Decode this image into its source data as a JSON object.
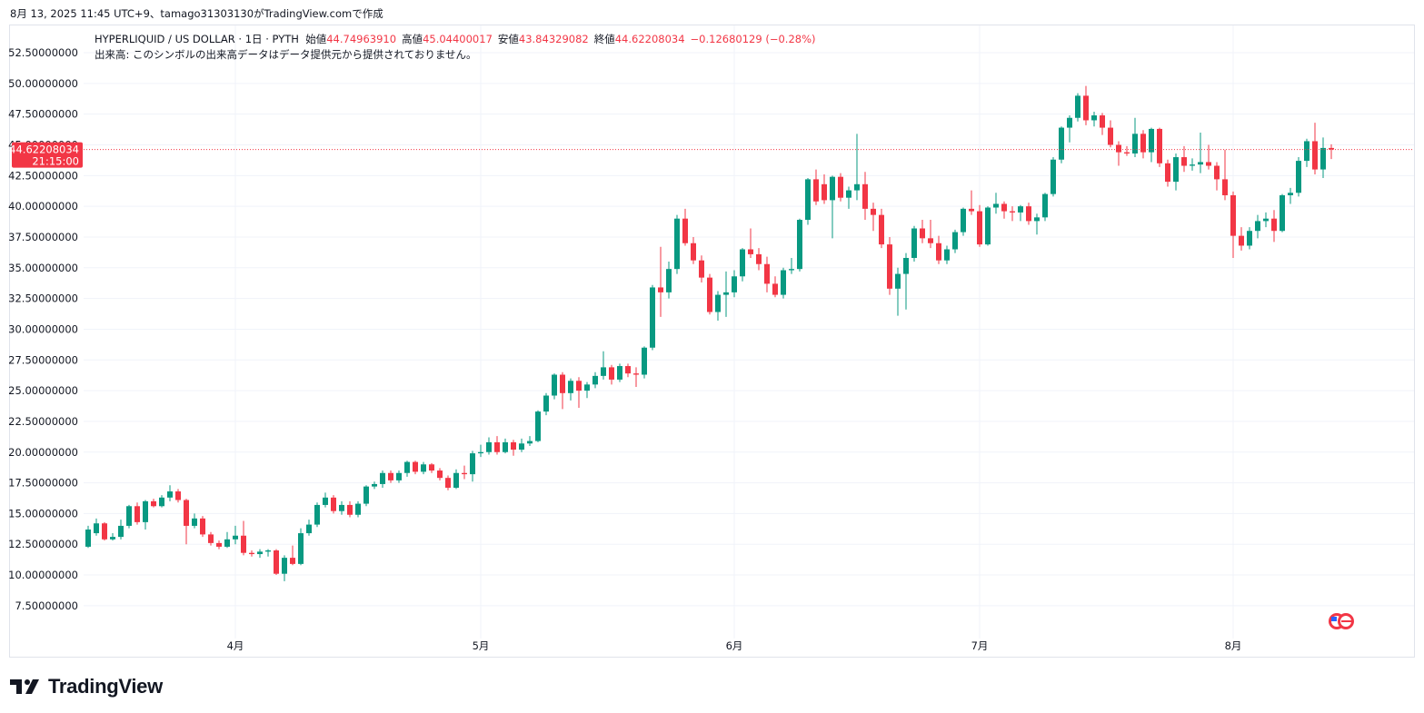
{
  "created_note": "8月 13, 2025 11:45 UTC+9、tamago31303130がTradingView.comで作成",
  "logo": "TradingView",
  "chart_data": {
    "type": "candlestick",
    "symbol": "HYPERLIQUID / US DOLLAR · 1日 · PYTH",
    "legend_items": [
      {
        "label": "始値",
        "value": "44.74963910"
      },
      {
        "label": "高値",
        "value": "45.04400017"
      },
      {
        "label": "安値",
        "value": "43.84329082"
      },
      {
        "label": "終値",
        "value": "44.62208034"
      }
    ],
    "change": "−0.12680129 (−0.28%)",
    "volume_note": "出来高: このシンボルの出来高データはデータ提供元から提供されておりません。",
    "last_price": {
      "value": 44.62208034,
      "label": "44.62208034"
    },
    "countdown": "21:15:00",
    "up_color": "#089981",
    "down_color": "#f23645",
    "grid": true,
    "ylim": [
      4.83,
      54.72
    ],
    "yticks": [
      {
        "value": 7.5,
        "label": "7.50000000"
      },
      {
        "value": 10,
        "label": "10.00000000"
      },
      {
        "value": 12.5,
        "label": "12.50000000"
      },
      {
        "value": 15,
        "label": "15.00000000"
      },
      {
        "value": 17.5,
        "label": "17.50000000"
      },
      {
        "value": 20,
        "label": "20.00000000"
      },
      {
        "value": 22.5,
        "label": "22.50000000"
      },
      {
        "value": 25,
        "label": "25.00000000"
      },
      {
        "value": 27.5,
        "label": "27.50000000"
      },
      {
        "value": 30,
        "label": "30.00000000"
      },
      {
        "value": 32.5,
        "label": "32.50000000"
      },
      {
        "value": 35,
        "label": "35.00000000"
      },
      {
        "value": 37.5,
        "label": "37.50000000"
      },
      {
        "value": 40,
        "label": "40.00000000"
      },
      {
        "value": 42.5,
        "label": "42.50000000"
      },
      {
        "value": 45,
        "label": "45.00000000"
      },
      {
        "value": 47.5,
        "label": "47.50000000"
      },
      {
        "value": 50,
        "label": "50.00000000"
      },
      {
        "value": 52.5,
        "label": "52.50000000"
      }
    ],
    "categories": [
      null,
      null,
      null,
      null,
      null,
      null,
      null,
      null,
      null,
      null,
      null,
      null,
      null,
      null,
      null,
      null,
      null,
      null,
      "4月",
      null,
      null,
      null,
      null,
      null,
      null,
      null,
      null,
      null,
      null,
      null,
      null,
      null,
      null,
      null,
      null,
      null,
      null,
      null,
      null,
      null,
      null,
      null,
      null,
      null,
      null,
      null,
      null,
      null,
      "5月",
      null,
      null,
      null,
      null,
      null,
      null,
      null,
      null,
      null,
      null,
      null,
      null,
      null,
      null,
      null,
      null,
      null,
      null,
      null,
      null,
      null,
      null,
      null,
      null,
      null,
      null,
      null,
      null,
      null,
      null,
      "6月",
      null,
      null,
      null,
      null,
      null,
      null,
      null,
      null,
      null,
      null,
      null,
      null,
      null,
      null,
      null,
      null,
      null,
      null,
      null,
      null,
      null,
      null,
      null,
      null,
      null,
      null,
      null,
      null,
      null,
      "7月",
      null,
      null,
      null,
      null,
      null,
      null,
      null,
      null,
      null,
      null,
      null,
      null,
      null,
      null,
      null,
      null,
      null,
      null,
      null,
      null,
      null,
      null,
      null,
      null,
      null,
      null,
      null,
      null,
      null,
      null,
      "8月",
      null,
      null,
      null,
      null,
      null,
      null,
      null,
      null,
      null,
      null,
      null,
      null
    ],
    "ohlc": [
      [
        12.3,
        14.0,
        12.2,
        13.7
      ],
      [
        13.4,
        14.6,
        13.2,
        14.2
      ],
      [
        14.2,
        14.3,
        12.8,
        12.9
      ],
      [
        12.9,
        13.4,
        12.8,
        13.1
      ],
      [
        13.1,
        14.5,
        12.9,
        14.0
      ],
      [
        14.0,
        15.7,
        13.8,
        15.6
      ],
      [
        15.6,
        15.9,
        14.1,
        14.3
      ],
      [
        14.3,
        16.1,
        13.7,
        16.0
      ],
      [
        16.0,
        16.2,
        15.5,
        15.6
      ],
      [
        15.6,
        16.5,
        15.5,
        16.3
      ],
      [
        16.3,
        17.3,
        16.0,
        16.8
      ],
      [
        16.8,
        17.0,
        15.9,
        16.1
      ],
      [
        16.1,
        16.2,
        12.5,
        14.0
      ],
      [
        14.0,
        15.0,
        13.8,
        14.6
      ],
      [
        14.6,
        14.8,
        13.1,
        13.3
      ],
      [
        13.3,
        13.5,
        12.4,
        12.6
      ],
      [
        12.6,
        12.8,
        12.1,
        12.3
      ],
      [
        12.3,
        13.5,
        12.2,
        12.9
      ],
      [
        12.9,
        14.0,
        12.5,
        13.2
      ],
      [
        13.2,
        14.4,
        11.6,
        11.8
      ],
      [
        11.8,
        12.0,
        11.5,
        11.7
      ],
      [
        11.7,
        12.1,
        11.4,
        11.9
      ],
      [
        11.9,
        12.1,
        11.5,
        12.0
      ],
      [
        12.0,
        12.1,
        10.0,
        10.1
      ],
      [
        10.1,
        11.6,
        9.5,
        11.4
      ],
      [
        11.4,
        12.4,
        10.8,
        10.9
      ],
      [
        10.9,
        13.8,
        10.8,
        13.4
      ],
      [
        13.4,
        14.5,
        13.2,
        14.1
      ],
      [
        14.1,
        15.9,
        13.9,
        15.7
      ],
      [
        15.7,
        16.7,
        15.5,
        16.3
      ],
      [
        16.3,
        16.5,
        15.0,
        15.2
      ],
      [
        15.2,
        16.0,
        14.9,
        15.7
      ],
      [
        15.7,
        16.0,
        14.7,
        14.9
      ],
      [
        14.9,
        16.0,
        14.7,
        15.8
      ],
      [
        15.8,
        17.3,
        15.6,
        17.2
      ],
      [
        17.2,
        17.6,
        17.0,
        17.4
      ],
      [
        17.4,
        18.5,
        17.1,
        18.3
      ],
      [
        18.3,
        18.5,
        17.5,
        17.7
      ],
      [
        17.7,
        18.5,
        17.5,
        18.3
      ],
      [
        18.3,
        19.3,
        18.0,
        19.2
      ],
      [
        19.2,
        19.3,
        18.2,
        18.4
      ],
      [
        18.4,
        19.2,
        18.2,
        19.0
      ],
      [
        19.0,
        19.1,
        18.3,
        18.5
      ],
      [
        18.5,
        18.7,
        17.7,
        17.9
      ],
      [
        17.9,
        18.1,
        16.9,
        17.1
      ],
      [
        17.1,
        18.6,
        17.0,
        18.3
      ],
      [
        18.3,
        18.9,
        17.8,
        18.2
      ],
      [
        18.2,
        20.1,
        17.6,
        19.9
      ],
      [
        19.9,
        20.6,
        19.6,
        20.0
      ],
      [
        20.0,
        21.2,
        19.8,
        20.8
      ],
      [
        20.8,
        21.3,
        19.8,
        20.0
      ],
      [
        20.0,
        21.1,
        19.9,
        20.8
      ],
      [
        20.8,
        21.0,
        19.7,
        20.2
      ],
      [
        20.2,
        21.1,
        20.0,
        20.7
      ],
      [
        20.7,
        21.3,
        20.5,
        20.9
      ],
      [
        20.9,
        23.4,
        20.8,
        23.3
      ],
      [
        23.3,
        24.8,
        23.0,
        24.6
      ],
      [
        24.6,
        26.4,
        24.3,
        26.3
      ],
      [
        26.3,
        26.5,
        23.5,
        24.8
      ],
      [
        24.8,
        26.0,
        24.2,
        25.8
      ],
      [
        25.8,
        26.1,
        23.6,
        25.0
      ],
      [
        25.0,
        25.7,
        24.4,
        25.5
      ],
      [
        25.5,
        26.5,
        25.2,
        26.2
      ],
      [
        26.2,
        28.2,
        25.9,
        26.9
      ],
      [
        26.9,
        27.1,
        25.5,
        25.9
      ],
      [
        25.9,
        27.2,
        25.7,
        27.0
      ],
      [
        27.0,
        27.2,
        26.1,
        26.4
      ],
      [
        26.4,
        26.9,
        25.3,
        26.3
      ],
      [
        26.3,
        28.6,
        26.0,
        28.5
      ],
      [
        28.5,
        33.6,
        28.3,
        33.4
      ],
      [
        33.4,
        36.7,
        31.0,
        33.0
      ],
      [
        33.0,
        35.5,
        32.5,
        34.9
      ],
      [
        34.9,
        39.3,
        34.5,
        39.0
      ],
      [
        39.0,
        39.8,
        36.8,
        37.0
      ],
      [
        37.0,
        37.5,
        35.3,
        35.6
      ],
      [
        35.6,
        36.0,
        33.8,
        34.2
      ],
      [
        34.2,
        34.5,
        31.2,
        31.4
      ],
      [
        31.4,
        33.1,
        30.7,
        32.8
      ],
      [
        32.8,
        34.7,
        31.0,
        33.0
      ],
      [
        33.0,
        34.8,
        32.6,
        34.3
      ],
      [
        34.3,
        36.6,
        33.9,
        36.5
      ],
      [
        36.5,
        38.2,
        35.8,
        36.1
      ],
      [
        36.1,
        36.6,
        34.8,
        35.3
      ],
      [
        35.3,
        35.9,
        33.0,
        33.7
      ],
      [
        33.7,
        34.3,
        32.6,
        32.8
      ],
      [
        32.8,
        35.0,
        32.5,
        34.8
      ],
      [
        34.8,
        35.8,
        34.5,
        34.9
      ],
      [
        34.9,
        39.0,
        34.7,
        38.9
      ],
      [
        38.9,
        42.3,
        38.5,
        42.2
      ],
      [
        42.2,
        43.0,
        40.1,
        40.4
      ],
      [
        41.8,
        42.6,
        40.2,
        40.5
      ],
      [
        40.5,
        42.5,
        37.4,
        42.4
      ],
      [
        42.4,
        42.7,
        40.4,
        40.7
      ],
      [
        40.7,
        41.6,
        39.8,
        41.3
      ],
      [
        41.3,
        45.9,
        40.5,
        41.8
      ],
      [
        41.8,
        42.8,
        38.9,
        39.8
      ],
      [
        39.8,
        40.3,
        38.0,
        39.3
      ],
      [
        39.3,
        39.8,
        36.6,
        36.9
      ],
      [
        36.9,
        37.5,
        32.8,
        33.3
      ],
      [
        33.3,
        35.0,
        31.1,
        34.5
      ],
      [
        34.5,
        36.2,
        31.6,
        35.8
      ],
      [
        35.8,
        38.4,
        35.5,
        38.2
      ],
      [
        38.2,
        38.9,
        37.0,
        37.4
      ],
      [
        37.4,
        38.9,
        36.6,
        37.0
      ],
      [
        37.0,
        37.6,
        35.3,
        35.6
      ],
      [
        35.6,
        36.8,
        35.3,
        36.5
      ],
      [
        36.5,
        38.1,
        36.2,
        37.9
      ],
      [
        37.9,
        39.9,
        37.6,
        39.8
      ],
      [
        39.8,
        41.3,
        39.3,
        39.6
      ],
      [
        39.6,
        40.1,
        36.7,
        36.9
      ],
      [
        36.9,
        40.0,
        36.8,
        39.9
      ],
      [
        39.9,
        41.1,
        39.4,
        40.2
      ],
      [
        40.2,
        40.4,
        39.0,
        39.6
      ],
      [
        39.6,
        40.0,
        38.8,
        39.5
      ],
      [
        39.5,
        40.1,
        38.8,
        40.0
      ],
      [
        40.0,
        40.3,
        38.5,
        38.8
      ],
      [
        38.8,
        39.4,
        37.7,
        39.1
      ],
      [
        39.1,
        41.1,
        38.8,
        41.0
      ],
      [
        41.0,
        44.0,
        40.8,
        43.8
      ],
      [
        43.8,
        46.5,
        43.5,
        46.4
      ],
      [
        46.4,
        47.4,
        45.2,
        47.2
      ],
      [
        47.2,
        49.2,
        46.9,
        49.0
      ],
      [
        49.0,
        49.8,
        46.6,
        47.0
      ],
      [
        47.0,
        47.7,
        46.5,
        47.4
      ],
      [
        47.4,
        47.6,
        45.8,
        46.4
      ],
      [
        46.4,
        47.0,
        44.8,
        45.0
      ],
      [
        45.0,
        45.3,
        43.3,
        44.4
      ],
      [
        44.4,
        44.9,
        44.1,
        44.3
      ],
      [
        44.3,
        47.2,
        44.0,
        45.9
      ],
      [
        45.9,
        46.2,
        43.9,
        44.4
      ],
      [
        44.4,
        46.4,
        43.6,
        46.3
      ],
      [
        46.3,
        46.4,
        43.2,
        43.5
      ],
      [
        43.5,
        43.8,
        41.6,
        42.0
      ],
      [
        42.0,
        44.3,
        41.3,
        44.0
      ],
      [
        44.0,
        44.9,
        42.8,
        43.3
      ],
      [
        43.3,
        43.9,
        42.9,
        43.4
      ],
      [
        43.4,
        46.0,
        42.7,
        43.6
      ],
      [
        43.6,
        45.0,
        43.0,
        43.3
      ],
      [
        43.3,
        43.6,
        41.3,
        42.2
      ],
      [
        42.2,
        44.6,
        40.5,
        40.9
      ],
      [
        40.9,
        41.2,
        35.8,
        37.6
      ],
      [
        37.6,
        38.3,
        36.4,
        36.8
      ],
      [
        36.8,
        38.3,
        36.5,
        38.0
      ],
      [
        38.0,
        39.3,
        37.4,
        38.8
      ],
      [
        38.8,
        39.5,
        38.3,
        39.0
      ],
      [
        39.0,
        39.7,
        37.1,
        38.0
      ],
      [
        38.0,
        41.0,
        37.9,
        40.9
      ],
      [
        40.9,
        41.5,
        40.2,
        41.1
      ],
      [
        41.1,
        44.0,
        40.8,
        43.7
      ],
      [
        43.7,
        45.5,
        43.2,
        45.3
      ],
      [
        45.3,
        46.8,
        42.6,
        43.0
      ],
      [
        43.0,
        45.6,
        42.3,
        44.75
      ],
      [
        44.7496391,
        45.04400017,
        43.84329082,
        44.62208034
      ]
    ]
  }
}
